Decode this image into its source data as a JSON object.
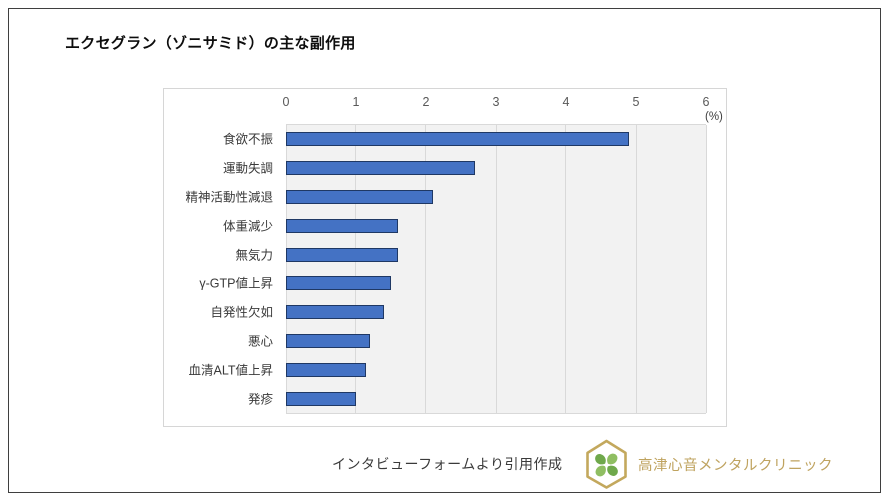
{
  "page": {
    "title": "エクセグラン（ゾニサミド）の主な副作用"
  },
  "chart_data": {
    "type": "bar",
    "orientation": "horizontal",
    "title": "エクセグラン（ゾニサミド）の主な副作用",
    "categories": [
      "食欲不振",
      "運動失調",
      "精神活動性減退",
      "体重減少",
      "無気力",
      "γ-GTP値上昇",
      "自発性欠如",
      "悪心",
      "血清ALT値上昇",
      "発疹"
    ],
    "values": [
      4.9,
      2.7,
      2.1,
      1.6,
      1.6,
      1.5,
      1.4,
      1.2,
      1.15,
      1.0
    ],
    "unit_label": "(%)",
    "x_ticks": [
      "0",
      "1",
      "2",
      "3",
      "4",
      "5",
      "6"
    ],
    "xlim": [
      0,
      6
    ],
    "axis_position": "top",
    "grid": true,
    "legend": false,
    "colors": {
      "bar_fill": "#4472C4",
      "bar_border": "#1F3864",
      "plot_bg": "#F2F2F2",
      "gridline": "#D9D9D9",
      "tick_text": "#595959",
      "label_text": "#3A3A3A",
      "clinic_gold": "#BFA35F",
      "logo_gold": "#C3A85D",
      "leaf_green_light": "#8FBE62",
      "leaf_green_dark": "#6FA84B"
    }
  },
  "footer": {
    "source_text": "インタビューフォームより引用作成",
    "clinic_name": "高津心音メンタルクリニック",
    "logo_icon": "hexagon-clover-logo"
  }
}
